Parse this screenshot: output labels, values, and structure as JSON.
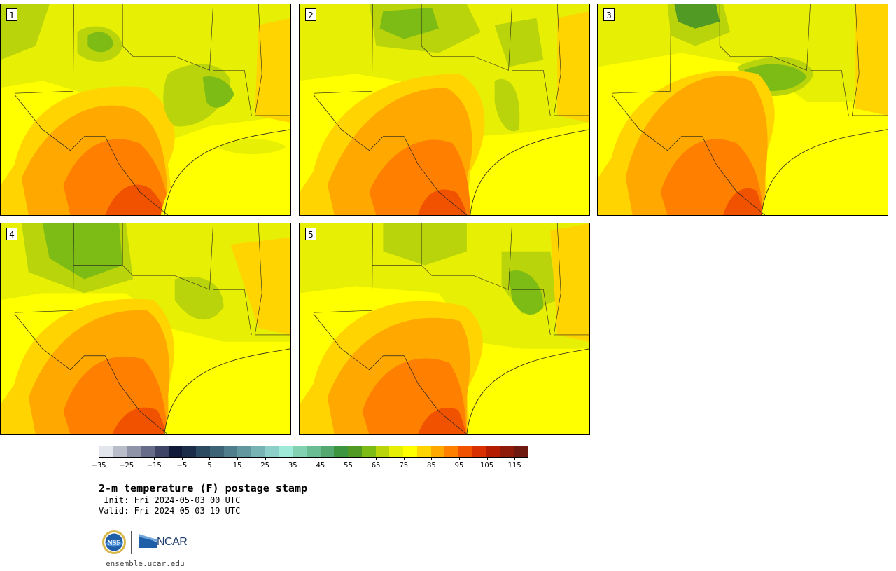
{
  "panels": [
    {
      "label": "1",
      "variant": 0
    },
    {
      "label": "2",
      "variant": 1
    },
    {
      "label": "3",
      "variant": 2
    },
    {
      "label": "4",
      "variant": 3
    },
    {
      "label": "5",
      "variant": 4
    }
  ],
  "colorbar": {
    "colors": [
      "#e3e6ec",
      "#b9bcc9",
      "#9094a8",
      "#676c88",
      "#3e4566",
      "#111b38",
      "#1c2d4a",
      "#2c4a60",
      "#3d6377",
      "#4f7d8b",
      "#62979f",
      "#77b2b4",
      "#8ccfc8",
      "#9ee9d8",
      "#82d1b1",
      "#6abd92",
      "#55a86f",
      "#3e9540",
      "#519b25",
      "#7dbb15",
      "#b9d40a",
      "#e6ef04",
      "#ffff00",
      "#ffd400",
      "#ffa800",
      "#ff7f00",
      "#f05200",
      "#d83000",
      "#b41d00",
      "#8e1a0a",
      "#6e1a10"
    ],
    "range": [
      -35,
      120
    ],
    "step": 5,
    "tick_labels": [
      "−35",
      "−25",
      "−15",
      "−5",
      "5",
      "15",
      "25",
      "35",
      "45",
      "55",
      "65",
      "75",
      "85",
      "95",
      "105",
      "115"
    ]
  },
  "title": "2-m temperature (F) postage stamp",
  "init_line": " Init: Fri 2024-05-03 00 UTC",
  "valid_line": "Valid: Fri 2024-05-03 19 UTC",
  "logos": {
    "nsf": "NSF",
    "ncar": "NCAR"
  },
  "site": "ensemble.ucar.edu"
}
